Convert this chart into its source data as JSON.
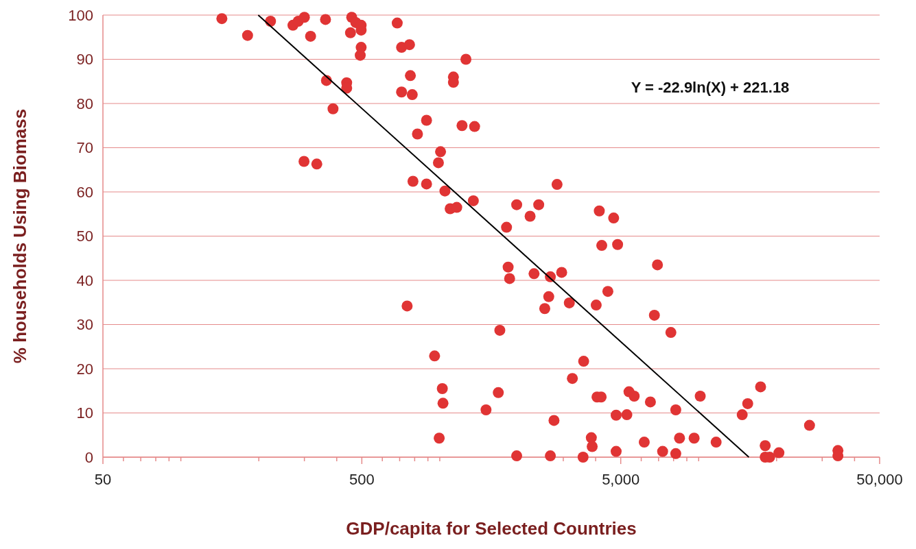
{
  "chart_data": {
    "type": "scatter",
    "xlabel": "GDP/capita for Selected Countries",
    "ylabel": "% households Using Biomass",
    "log": "x",
    "grid": "y",
    "xlim": [
      50,
      50000
    ],
    "ylim": [
      0,
      100
    ],
    "xticks": [
      {
        "value": 50,
        "label": "50"
      },
      {
        "value": 60,
        "label": null
      },
      {
        "value": 70,
        "label": null
      },
      {
        "value": 80,
        "label": null
      },
      {
        "value": 90,
        "label": null
      },
      {
        "value": 100,
        "label": null
      },
      {
        "value": 200,
        "label": null
      },
      {
        "value": 300,
        "label": null
      },
      {
        "value": 400,
        "label": null
      },
      {
        "value": 500,
        "label": "500"
      },
      {
        "value": 600,
        "label": null
      },
      {
        "value": 700,
        "label": null
      },
      {
        "value": 800,
        "label": null
      },
      {
        "value": 900,
        "label": null
      },
      {
        "value": 1000,
        "label": null
      },
      {
        "value": 2000,
        "label": null
      },
      {
        "value": 3000,
        "label": null
      },
      {
        "value": 4000,
        "label": null
      },
      {
        "value": 5000,
        "label": "5,000"
      },
      {
        "value": 6000,
        "label": null
      },
      {
        "value": 7000,
        "label": null
      },
      {
        "value": 8000,
        "label": null
      },
      {
        "value": 9000,
        "label": null
      },
      {
        "value": 10000,
        "label": null
      },
      {
        "value": 20000,
        "label": null
      },
      {
        "value": 30000,
        "label": null
      },
      {
        "value": 40000,
        "label": null
      },
      {
        "value": 50000,
        "label": "50,000"
      }
    ],
    "yticks": [
      0,
      10,
      20,
      30,
      40,
      50,
      60,
      70,
      80,
      90,
      100
    ],
    "annotations": [
      "Y = -22.9ln(X) + 221.18"
    ],
    "series": [
      {
        "marker": "circle",
        "color": "#e03434",
        "x": [
          144,
          181,
          222,
          271,
          284,
          300,
          362,
          317,
          457,
          474,
          497,
          452,
          497,
          497,
          493,
          685,
          712,
          764,
          1262,
          770,
          1129,
          1129,
          712,
          783,
          365,
          437,
          437,
          387,
          889,
          820,
          1219,
          1363,
          1007,
          988,
          299,
          335,
          788,
          889,
          1047,
          1348,
          1097,
          1163,
          1982,
          2411,
          2233,
          1811,
          2838,
          4132,
          4695,
          4224,
          4863,
          6931,
          1837,
          1861,
          2313,
          2674,
          2957,
          2636,
          2544,
          3165,
          4020,
          4459,
          6745,
          7811,
          748,
          1706,
          955,
          3596,
          3252,
          1023,
          1029,
          1683,
          1509,
          4050,
          4200,
          5381,
          5636,
          6510,
          10140,
          8158,
          17345,
          15467,
          14727,
          26800,
          4800,
          5280,
          2762,
          995,
          3849,
          3879,
          6163,
          8434,
          9604,
          11681,
          7257,
          8158,
          4800,
          1982,
          2674,
          3577,
          18069,
          18069,
          18800,
          20415,
          34500,
          34500
        ],
        "values": [
          99.2,
          95.4,
          98.6,
          97.7,
          98.6,
          99.5,
          99.0,
          95.2,
          99.5,
          98.3,
          97.7,
          96.0,
          96.6,
          92.7,
          90.9,
          98.2,
          92.7,
          93.3,
          90.0,
          86.3,
          86.0,
          84.8,
          82.6,
          82.0,
          85.2,
          84.7,
          83.5,
          78.8,
          76.2,
          73.1,
          75.0,
          74.8,
          69.1,
          66.6,
          66.9,
          66.3,
          62.4,
          61.8,
          60.2,
          58.0,
          56.2,
          56.5,
          57.1,
          57.1,
          54.5,
          52.0,
          61.7,
          55.7,
          54.1,
          47.9,
          48.1,
          43.5,
          43.0,
          40.4,
          41.5,
          40.8,
          41.8,
          36.3,
          33.6,
          34.9,
          34.4,
          37.5,
          32.1,
          28.2,
          34.2,
          28.7,
          22.9,
          21.7,
          17.8,
          15.5,
          12.2,
          14.6,
          10.7,
          13.6,
          13.6,
          14.8,
          13.8,
          12.5,
          13.8,
          10.7,
          15.9,
          12.1,
          9.6,
          7.2,
          9.5,
          9.6,
          8.3,
          4.3,
          4.4,
          2.4,
          3.4,
          4.3,
          4.3,
          3.4,
          1.3,
          0.8,
          1.3,
          0.3,
          0.3,
          0.0,
          2.6,
          0.0,
          0.0,
          1.0,
          1.5,
          0.3
        ]
      },
      {
        "type": "line",
        "color": "#000000",
        "x": [
          199,
          15630
        ],
        "values": [
          100,
          0
        ]
      }
    ]
  }
}
